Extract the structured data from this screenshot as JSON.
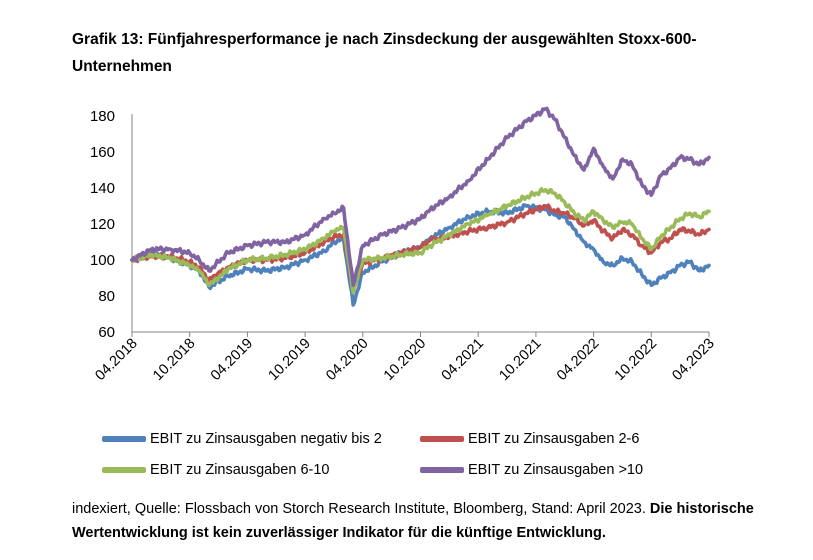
{
  "title": "Grafik 13: Fünfjahresperformance je nach Zinsdeckung der ausgewählten Stoxx-600-Unternehmen",
  "footer": {
    "source": "indexiert, Quelle: Flossbach von Storch Research Institute, Bloomberg, Stand: April 2023.",
    "disclaimer": "Die historische Wertentwicklung ist kein zuverlässiger Indikator für die künftige Entwicklung."
  },
  "chart_data": {
    "type": "line",
    "title": "",
    "xlabel": "",
    "ylabel": "",
    "ylim": [
      60,
      180
    ],
    "yticks": [
      60,
      80,
      100,
      120,
      140,
      160,
      180
    ],
    "x_tick_labels": [
      "04.2018",
      "10.2018",
      "04.2019",
      "10.2019",
      "04.2020",
      "10.2020",
      "04.2021",
      "10.2021",
      "04.2022",
      "10.2022",
      "04.2023"
    ],
    "x": [
      "04.2018",
      "06.2018",
      "08.2018",
      "10.2018",
      "11.2018",
      "12.2018",
      "01.2019",
      "02.2019",
      "04.2019",
      "06.2019",
      "08.2019",
      "10.2019",
      "12.2019",
      "01.2020",
      "02.2020",
      "03.2020",
      "04.2020",
      "06.2020",
      "08.2020",
      "10.2020",
      "11.2020",
      "01.2021",
      "03.2021",
      "05.2021",
      "07.2021",
      "09.2021",
      "11.2021",
      "12.2021",
      "01.2022",
      "02.2022",
      "03.2022",
      "04.2022",
      "05.2022",
      "06.2022",
      "07.2022",
      "08.2022",
      "09.2022",
      "10.2022",
      "11.2022",
      "12.2022",
      "01.2023",
      "02.2023",
      "03.2023",
      "04.2023"
    ],
    "grid": false,
    "legend_position": "bottom",
    "series": [
      {
        "name": "EBIT zu Zinsausgaben negativ bis 2",
        "color": "#4f81bd",
        "values": [
          100,
          104,
          101,
          97,
          94,
          85,
          88,
          91,
          95,
          94,
          96,
          100,
          105,
          110,
          112,
          75,
          93,
          99,
          104,
          107,
          112,
          118,
          124,
          127,
          126,
          130,
          128,
          125,
          124,
          117,
          110,
          106,
          99,
          97,
          101,
          99,
          92,
          86,
          90,
          93,
          97,
          99,
          94,
          97
        ]
      },
      {
        "name": "EBIT zu Zinsausgaben 2-6",
        "color": "#c0504d",
        "values": [
          100,
          102,
          102,
          99,
          96,
          89,
          93,
          96,
          100,
          100,
          101,
          104,
          110,
          113,
          114,
          84,
          98,
          101,
          104,
          107,
          111,
          113,
          116,
          118,
          121,
          126,
          130,
          127,
          126,
          123,
          119,
          122,
          116,
          112,
          117,
          114,
          108,
          104,
          110,
          112,
          117,
          116,
          114,
          117
        ]
      },
      {
        "name": "EBIT zu Zinsausgaben 6-10",
        "color": "#9bbb59",
        "values": [
          100,
          103,
          101,
          97,
          94,
          86,
          90,
          95,
          100,
          101,
          103,
          106,
          112,
          116,
          118,
          82,
          100,
          101,
          103,
          104,
          108,
          114,
          120,
          125,
          130,
          135,
          139,
          137,
          132,
          126,
          122,
          127,
          122,
          118,
          121,
          120,
          112,
          106,
          113,
          118,
          123,
          126,
          124,
          127
        ]
      },
      {
        "name": "EBIT zu Zinsausgaben >10",
        "color": "#8064a2",
        "values": [
          100,
          106,
          106,
          104,
          100,
          94,
          99,
          104,
          108,
          110,
          110,
          114,
          123,
          126,
          129,
          86,
          108,
          114,
          118,
          123,
          128,
          135,
          144,
          156,
          168,
          177,
          184,
          178,
          168,
          158,
          150,
          162,
          152,
          145,
          156,
          153,
          142,
          136,
          147,
          151,
          157,
          156,
          153,
          157
        ]
      }
    ]
  }
}
